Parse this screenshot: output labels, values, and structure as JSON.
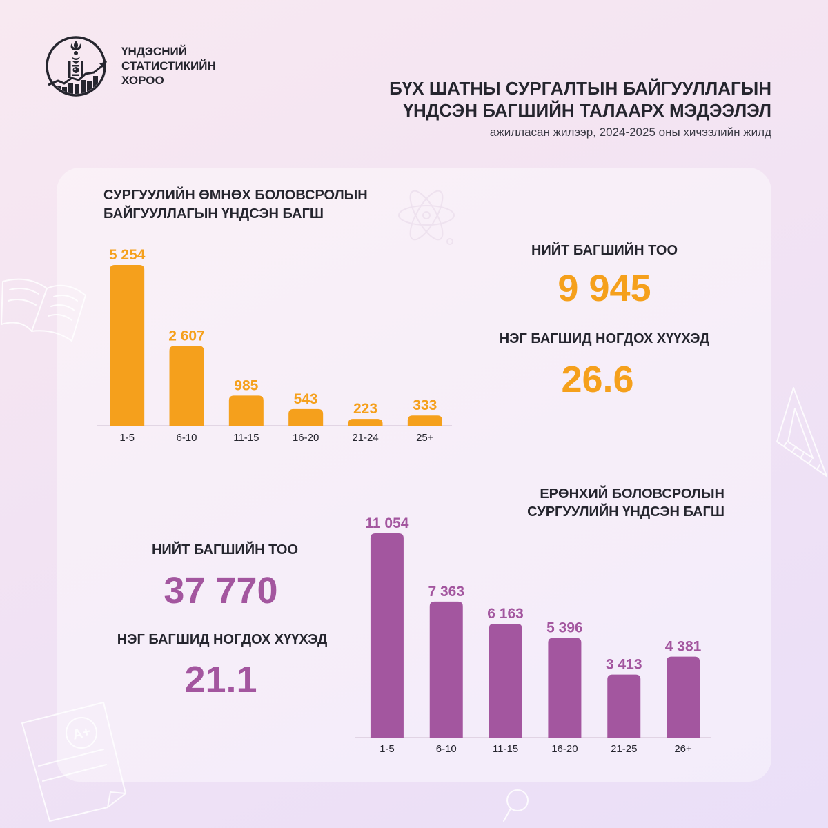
{
  "org": {
    "name_lines": [
      "ҮНДЭСНИЙ",
      "СТАТИСТИКИЙН",
      "ХОРОО"
    ],
    "logo_icon": "soyombo-growth-chart-logo"
  },
  "header": {
    "title_lines": [
      "БҮХ ШАТНЫ СУРГАЛТЫН БАЙГУУЛЛАГЫН",
      "ҮНДСЭН БАГШИЙН ТАЛААРХ МЭДЭЭЛЭЛ"
    ],
    "subtitle": "ажилласан жилээр, 2024-2025 оны хичээлийн жилд"
  },
  "preschool_stats": {
    "total_label": "НИЙТ БАГШИЙН ТОО",
    "total": "9 945",
    "ratio_label": "НЭГ БАГШИД НОГДОХ ХҮҮХЭД",
    "ratio": "26.6"
  },
  "general_stats": {
    "total_label": "НИЙТ БАГШИЙН ТОО",
    "total": "37 770",
    "ratio_label": "НЭГ БАГШИД НОГДОХ ХҮҮХЭД",
    "ratio": "21.1"
  },
  "decor": {
    "grade_mark": "A+",
    "icons": [
      "open-book-icon",
      "atom-icon",
      "triangle-ruler-icon",
      "graded-paper-icon",
      "magnifier-icon"
    ]
  },
  "colors": {
    "background": "#F3E4F3",
    "text": "#25252E",
    "preschool_accent": "#F5A01C",
    "general_accent": "#A3569F"
  },
  "chart_data": [
    {
      "type": "bar",
      "title_lines": [
        "СУРГУУЛИЙН ӨМНӨХ БОЛОВСРОЛЫН",
        "БАЙГУУЛЛАГЫН ҮНДСЭН БАГШ"
      ],
      "categories": [
        "1-5",
        "6-10",
        "11-15",
        "16-20",
        "21-24",
        "25+"
      ],
      "values": [
        5254,
        2607,
        985,
        543,
        223,
        333
      ],
      "color": "#F5A01C",
      "grid": false
    },
    {
      "type": "bar",
      "title_lines": [
        "ЕРӨНХИЙ БОЛОВСРОЛЫН",
        "СУРГУУЛИЙН ҮНДСЭН БАГШ"
      ],
      "categories": [
        "1-5",
        "6-10",
        "11-15",
        "16-20",
        "21-25",
        "26+"
      ],
      "values": [
        11054,
        7363,
        6163,
        5396,
        3413,
        4381
      ],
      "color": "#A3569F",
      "grid": false
    }
  ]
}
